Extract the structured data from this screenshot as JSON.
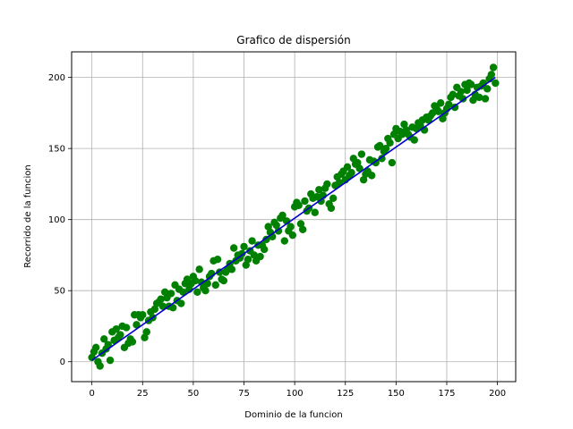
{
  "chart_data": {
    "type": "scatter",
    "title": "Grafico de dispersión",
    "xlabel": "Dominio de la funcion",
    "ylabel": "Recorrido de la funcion",
    "xlim": [
      -10,
      209
    ],
    "ylim": [
      -14,
      218
    ],
    "xticks": [
      0,
      25,
      50,
      75,
      100,
      125,
      150,
      175,
      200
    ],
    "yticks": [
      0,
      50,
      100,
      150,
      200
    ],
    "grid": true,
    "colors": {
      "points": "#008000",
      "line": "#0000cc",
      "grid": "#b0b0b0"
    },
    "series": [
      {
        "type": "scatter",
        "x": [
          0,
          1,
          2,
          3,
          4,
          5,
          6,
          7,
          8,
          9,
          10,
          11,
          12,
          13,
          14,
          15,
          16,
          17,
          18,
          19,
          20,
          21,
          22,
          23,
          24,
          25,
          26,
          27,
          28,
          29,
          30,
          31,
          32,
          33,
          34,
          35,
          36,
          37,
          38,
          39,
          40,
          41,
          42,
          43,
          44,
          45,
          46,
          47,
          48,
          49,
          50,
          51,
          52,
          53,
          54,
          55,
          56,
          57,
          58,
          59,
          60,
          61,
          62,
          63,
          64,
          65,
          66,
          67,
          68,
          69,
          70,
          71,
          72,
          73,
          74,
          75,
          76,
          77,
          78,
          79,
          80,
          81,
          82,
          83,
          84,
          85,
          86,
          87,
          88,
          89,
          90,
          91,
          92,
          93,
          94,
          95,
          96,
          97,
          98,
          99,
          100,
          101,
          102,
          103,
          104,
          105,
          106,
          107,
          108,
          109,
          110,
          111,
          112,
          113,
          114,
          115,
          116,
          117,
          118,
          119,
          120,
          121,
          122,
          123,
          124,
          125,
          126,
          127,
          128,
          129,
          130,
          131,
          132,
          133,
          134,
          135,
          136,
          137,
          138,
          139,
          140,
          141,
          142,
          143,
          144,
          145,
          146,
          147,
          148,
          149,
          150,
          151,
          152,
          153,
          154,
          155,
          156,
          157,
          158,
          159,
          160,
          161,
          162,
          163,
          164,
          165,
          166,
          167,
          168,
          169,
          170,
          171,
          172,
          173,
          174,
          175,
          176,
          177,
          178,
          179,
          180,
          181,
          182,
          183,
          184,
          185,
          186,
          187,
          188,
          189,
          190,
          191,
          192,
          193,
          194,
          195,
          196,
          197,
          198,
          199
        ],
        "y": [
          3,
          7,
          10,
          0,
          -3,
          6,
          16,
          9,
          12,
          1,
          21,
          15,
          23,
          17,
          19,
          25,
          10,
          24,
          13,
          16,
          14,
          33,
          26,
          33,
          31,
          33,
          17,
          21,
          29,
          35,
          31,
          37,
          41,
          42,
          44,
          39,
          49,
          45,
          39,
          48,
          38,
          54,
          43,
          51,
          41,
          49,
          55,
          58,
          51,
          55,
          60,
          57,
          49,
          65,
          56,
          52,
          50,
          55,
          60,
          62,
          71,
          54,
          72,
          63,
          58,
          57,
          63,
          65,
          69,
          65,
          80,
          71,
          75,
          73,
          76,
          81,
          68,
          72,
          78,
          85,
          75,
          71,
          82,
          74,
          82,
          79,
          86,
          95,
          91,
          88,
          98,
          96,
          92,
          101,
          103,
          85,
          99,
          92,
          95,
          89,
          109,
          112,
          110,
          97,
          93,
          113,
          106,
          108,
          118,
          115,
          105,
          116,
          121,
          113,
          117,
          122,
          125,
          111,
          108,
          115,
          124,
          130,
          126,
          132,
          134,
          128,
          137,
          131,
          133,
          143,
          139,
          140,
          136,
          146,
          128,
          132,
          134,
          142,
          131,
          141,
          140,
          151,
          152,
          143,
          148,
          150,
          157,
          154,
          140,
          160,
          164,
          157,
          162,
          160,
          167,
          163,
          160,
          158,
          165,
          156,
          164,
          168,
          166,
          170,
          163,
          172,
          170,
          173,
          175,
          180,
          178,
          176,
          182,
          171,
          175,
          178,
          181,
          186,
          188,
          179,
          193,
          187,
          190,
          185,
          195,
          191,
          196,
          195,
          184,
          188,
          193,
          186,
          194,
          196,
          185,
          192,
          199,
          202,
          207,
          196
        ]
      },
      {
        "type": "line",
        "x": [
          0,
          199
        ],
        "y": [
          1,
          200
        ]
      }
    ]
  }
}
